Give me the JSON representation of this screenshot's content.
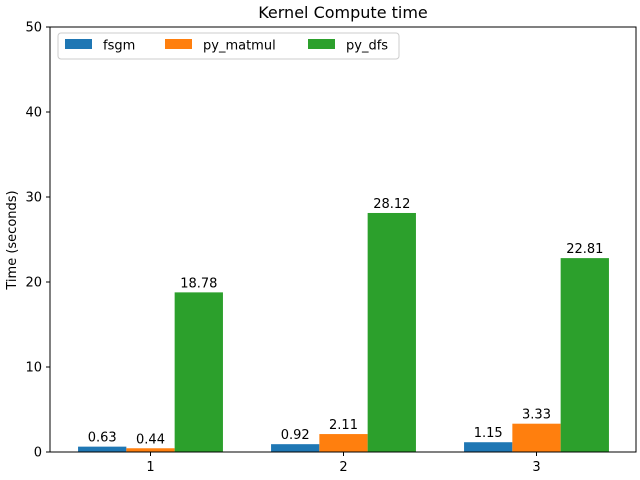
{
  "chart_data": {
    "type": "bar",
    "title": "Kernel Compute time",
    "xlabel": "",
    "ylabel": "Time (seconds)",
    "categories": [
      "1",
      "2",
      "3"
    ],
    "ylim": [
      0,
      50
    ],
    "yticks": [
      0,
      10,
      20,
      30,
      40,
      50
    ],
    "legend_position": "top-left",
    "series": [
      {
        "name": "fsgm",
        "color": "#1f77b4",
        "values": [
          0.63,
          0.92,
          1.15
        ],
        "labels": [
          "0.63",
          "0.92",
          "1.15"
        ]
      },
      {
        "name": "py_matmul",
        "color": "#ff7f0e",
        "values": [
          0.44,
          2.11,
          3.33
        ],
        "labels": [
          "0.44",
          "2.11",
          "3.33"
        ]
      },
      {
        "name": "py_dfs",
        "color": "#2ca02c",
        "values": [
          18.78,
          28.12,
          22.81
        ],
        "labels": [
          "18.78",
          "28.12",
          "22.81"
        ]
      }
    ]
  }
}
